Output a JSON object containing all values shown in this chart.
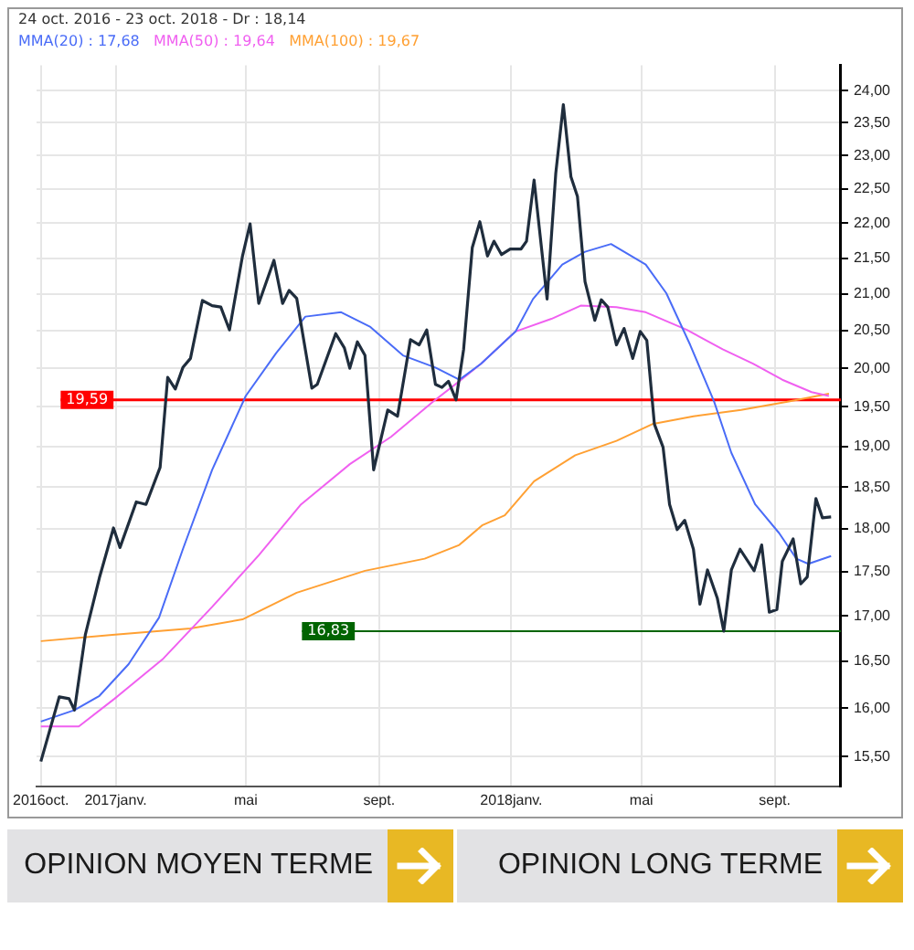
{
  "chart_data": {
    "type": "line",
    "title": "24 oct. 2016 - 23 oct. 2018 - Dr : 18,14",
    "log": "y",
    "grid": true,
    "legend": "top left",
    "marker": "none",
    "line_style": "solid",
    "xlim": [
      "2016-10-20",
      "2018-11-01"
    ],
    "xticks": [
      {
        "value": "2016-10-24",
        "label": "2016oct."
      },
      {
        "value": "2017-01-01",
        "label": "2017janv."
      },
      {
        "value": "2017-05-01",
        "label": "mai"
      },
      {
        "value": "2017-09-01",
        "label": "sept."
      },
      {
        "value": "2018-01-01",
        "label": "2018janv."
      },
      {
        "value": "2018-05-01",
        "label": "mai"
      },
      {
        "value": "2018-09-01",
        "label": "sept."
      }
    ],
    "ylim": [
      15.2,
      24.4
    ],
    "yticks": [
      {
        "value": 15.5,
        "label": "15,50"
      },
      {
        "value": 16,
        "label": "16,00"
      },
      {
        "value": 16.5,
        "label": "16,50"
      },
      {
        "value": 17,
        "label": "17,00"
      },
      {
        "value": 17.5,
        "label": "17,50"
      },
      {
        "value": 18,
        "label": "18,00"
      },
      {
        "value": 18.5,
        "label": "18,50"
      },
      {
        "value": 19,
        "label": "19,00"
      },
      {
        "value": 19.5,
        "label": "19,50"
      },
      {
        "value": 20,
        "label": "20,00"
      },
      {
        "value": 20.5,
        "label": "20,50"
      },
      {
        "value": 21,
        "label": "21,00"
      },
      {
        "value": 21.5,
        "label": "21,50"
      },
      {
        "value": 22,
        "label": "22,00"
      },
      {
        "value": 22.5,
        "label": "22,50"
      },
      {
        "value": 23,
        "label": "23,00"
      },
      {
        "value": 23.5,
        "label": "23,50"
      },
      {
        "value": 24,
        "label": "24,00"
      }
    ],
    "series": [
      {
        "color": "#1f2d3d",
        "x": [
          "2016-10-24",
          "2016-11-10",
          "2016-11-19",
          "2016-11-24",
          "2016-12-04",
          "2016-12-17",
          "2016-12-30",
          "2017-01-05",
          "2017-01-20",
          "2017-01-29",
          "2017-02-11",
          "2017-02-18",
          "2017-02-25",
          "2017-03-04",
          "2017-03-11",
          "2017-03-22",
          "2017-03-31",
          "2017-04-08",
          "2017-04-16",
          "2017-04-28",
          "2017-05-05",
          "2017-05-13",
          "2017-05-27",
          "2017-06-04",
          "2017-06-10",
          "2017-06-17",
          "2017-07-01",
          "2017-07-06",
          "2017-07-23",
          "2017-07-31",
          "2017-08-05",
          "2017-08-12",
          "2017-08-19",
          "2017-08-27",
          "2017-09-09",
          "2017-09-18",
          "2017-09-30",
          "2017-10-08",
          "2017-10-15",
          "2017-10-23",
          "2017-10-29",
          "2017-11-04",
          "2017-11-11",
          "2017-11-18",
          "2017-11-26",
          "2017-12-03",
          "2017-12-10",
          "2017-12-16",
          "2017-12-23",
          "2017-12-31",
          "2018-01-10",
          "2018-01-15",
          "2018-01-22",
          "2018-02-03",
          "2018-02-11",
          "2018-02-18",
          "2018-02-25",
          "2018-03-03",
          "2018-03-10",
          "2018-03-19",
          "2018-03-25",
          "2018-03-31",
          "2018-04-08",
          "2018-04-15",
          "2018-04-23",
          "2018-04-30",
          "2018-05-06",
          "2018-05-13",
          "2018-05-21",
          "2018-05-27",
          "2018-06-03",
          "2018-06-10",
          "2018-06-18",
          "2018-06-24",
          "2018-07-01",
          "2018-07-10",
          "2018-07-16",
          "2018-07-23",
          "2018-07-31",
          "2018-08-13",
          "2018-08-20",
          "2018-08-27",
          "2018-09-03",
          "2018-09-08",
          "2018-09-18",
          "2018-09-25",
          "2018-10-01",
          "2018-10-09",
          "2018-10-15",
          "2018-10-23"
        ],
        "values": [
          15.45,
          16.12,
          16.1,
          15.98,
          16.79,
          17.43,
          18.01,
          17.78,
          18.32,
          18.29,
          18.74,
          19.88,
          19.73,
          20.01,
          20.13,
          20.91,
          20.84,
          20.82,
          20.51,
          21.53,
          21.99,
          20.87,
          21.47,
          20.87,
          21.05,
          20.94,
          19.74,
          19.79,
          20.46,
          20.27,
          20.0,
          20.35,
          20.17,
          18.71,
          19.46,
          19.38,
          20.38,
          20.31,
          20.51,
          19.79,
          19.75,
          19.83,
          19.59,
          20.25,
          21.65,
          22.02,
          21.53,
          21.74,
          21.55,
          21.63,
          21.63,
          21.74,
          22.63,
          20.93,
          22.73,
          23.78,
          22.68,
          22.39,
          21.17,
          20.64,
          20.92,
          20.82,
          20.31,
          20.53,
          20.13,
          20.49,
          20.37,
          19.28,
          18.99,
          18.29,
          17.99,
          18.1,
          17.76,
          17.13,
          17.52,
          17.2,
          16.83,
          17.52,
          17.76,
          17.51,
          17.81,
          17.04,
          17.07,
          17.62,
          17.88,
          17.36,
          17.44,
          18.36,
          18.13,
          18.14
        ]
      },
      {
        "name": "MMA(20) : 17,68",
        "color": "#4a6cf7",
        "x": [
          "2016-10-24",
          "2016-11-24",
          "2016-12-17",
          "2017-01-13",
          "2017-02-10",
          "2017-03-04",
          "2017-03-31",
          "2017-05-01",
          "2017-05-29",
          "2017-06-25",
          "2017-07-28",
          "2017-08-24",
          "2017-09-23",
          "2017-10-23",
          "2017-11-14",
          "2017-12-04",
          "2018-01-05",
          "2018-01-21",
          "2018-02-17",
          "2018-03-10",
          "2018-04-03",
          "2018-05-05",
          "2018-05-24",
          "2018-06-15",
          "2018-07-07",
          "2018-07-23",
          "2018-08-14",
          "2018-09-05",
          "2018-09-21",
          "2018-10-02",
          "2018-10-23"
        ],
        "values": [
          15.86,
          15.98,
          16.13,
          16.47,
          16.98,
          17.76,
          18.71,
          19.64,
          20.2,
          20.69,
          20.75,
          20.55,
          20.17,
          20.01,
          19.85,
          20.06,
          20.49,
          20.93,
          21.41,
          21.59,
          21.7,
          21.41,
          21.01,
          20.31,
          19.57,
          18.92,
          18.29,
          17.95,
          17.65,
          17.59,
          17.68
        ]
      },
      {
        "name": "MMA(50) : 19,64",
        "color": "#f060f0",
        "x": [
          "2016-10-24",
          "2016-11-28",
          "2016-12-31",
          "2017-02-14",
          "2017-03-31",
          "2017-05-13",
          "2017-06-21",
          "2017-08-05",
          "2017-09-12",
          "2017-10-21",
          "2017-11-14",
          "2017-12-04",
          "2018-01-05",
          "2018-02-07",
          "2018-03-06",
          "2018-04-08",
          "2018-05-05",
          "2018-06-12",
          "2018-07-15",
          "2018-08-12",
          "2018-09-08",
          "2018-10-05",
          "2018-10-21"
        ],
        "values": [
          15.81,
          15.81,
          16.1,
          16.53,
          17.1,
          17.69,
          18.29,
          18.78,
          19.12,
          19.57,
          19.83,
          20.06,
          20.49,
          20.66,
          20.84,
          20.82,
          20.75,
          20.51,
          20.25,
          20.06,
          19.85,
          19.69,
          19.64
        ]
      },
      {
        "name": "MMA(100) : 19,67",
        "color": "#ffa033",
        "x": [
          "2016-10-24",
          "2016-12-29",
          "2017-03-11",
          "2017-04-28",
          "2017-06-17",
          "2017-08-19",
          "2017-10-13",
          "2017-11-14",
          "2017-12-05",
          "2017-12-26",
          "2018-01-22",
          "2018-03-01",
          "2018-04-08",
          "2018-05-11",
          "2018-06-18",
          "2018-08-01",
          "2018-09-14",
          "2018-10-21"
        ],
        "values": [
          16.72,
          16.79,
          16.86,
          16.96,
          17.26,
          17.51,
          17.65,
          17.81,
          18.04,
          18.16,
          18.57,
          18.89,
          19.07,
          19.28,
          19.38,
          19.46,
          19.57,
          19.67
        ]
      }
    ],
    "ref_lines": [
      {
        "axis": "y",
        "value": 19.59,
        "label": "19,59",
        "color": "#ff0000"
      },
      {
        "axis": "y",
        "value": 16.83,
        "label": "16,83",
        "color": "#006400"
      }
    ],
    "annotations": [
      "OPINION MOYEN TERME",
      "OPINION LONG TERME"
    ]
  }
}
